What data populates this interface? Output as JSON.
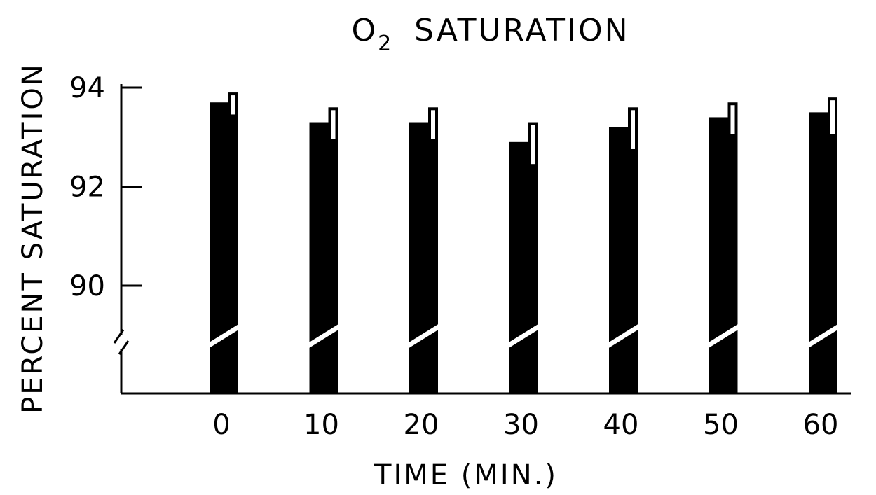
{
  "chart_data": {
    "type": "bar",
    "title_main": "O",
    "title_subscript": "2",
    "title_rest": "SATURATION",
    "xlabel": "TIME (MIN.)",
    "ylabel": "PERCENT SATURATION",
    "categories": [
      "0",
      "10",
      "20",
      "30",
      "40",
      "50",
      "60"
    ],
    "y_ticks": [
      "90",
      "92",
      "94"
    ],
    "y_tick_values": [
      90,
      92,
      94
    ],
    "ylim": [
      90,
      94
    ],
    "axis_break": true,
    "series": [
      {
        "fill": "solid",
        "values": [
          93.7,
          93.3,
          93.3,
          92.9,
          93.2,
          93.4,
          93.5
        ]
      },
      {
        "fill": "open",
        "values": [
          93.9,
          93.6,
          93.6,
          93.3,
          93.6,
          93.7,
          93.8
        ]
      }
    ],
    "errors": [
      {
        "down": [
          0.3,
          0.3,
          0.3,
          0.4,
          0.4,
          0.3,
          0.4
        ]
      },
      {
        "down": [
          0.5,
          0.7,
          0.7,
          0.9,
          0.9,
          0.7,
          0.8
        ]
      }
    ],
    "colors": {
      "ink": "#000000",
      "paper": "#ffffff"
    },
    "grid": false,
    "legend": "none"
  }
}
